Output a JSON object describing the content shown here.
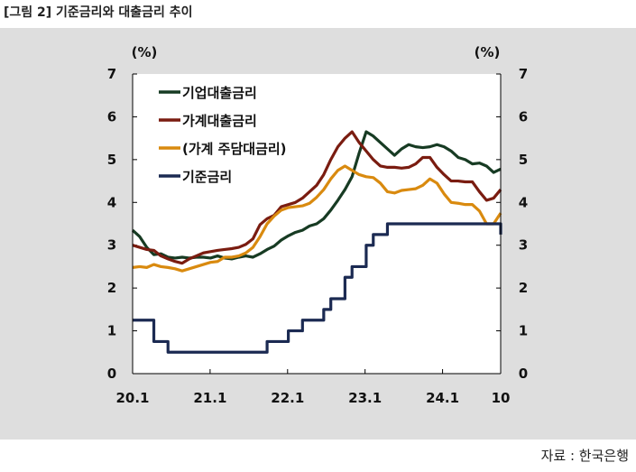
{
  "figure_title": "[그림 2] 기준금리와 대출금리 추이",
  "source": "자료 : 한국은행",
  "chart_data": {
    "type": "line",
    "y_unit_left": "(%)",
    "y_unit_right": "(%)",
    "ylim": [
      0,
      7
    ],
    "yticks": [
      "0",
      "1",
      "2",
      "3",
      "4",
      "5",
      "6",
      "7"
    ],
    "xticks": [
      "20.1",
      "21.1",
      "22.1",
      "23.1",
      "24.1",
      "10"
    ],
    "x_note": "monthly, 2020.1 to 2024.10",
    "legend_position": "top-left",
    "series": [
      {
        "name": "기업대출금리",
        "color": "#173b23",
        "values": [
          3.35,
          3.2,
          2.95,
          2.78,
          2.8,
          2.72,
          2.7,
          2.72,
          2.7,
          2.72,
          2.72,
          2.7,
          2.75,
          2.7,
          2.68,
          2.72,
          2.75,
          2.72,
          2.8,
          2.9,
          2.98,
          3.12,
          3.22,
          3.3,
          3.35,
          3.45,
          3.5,
          3.62,
          3.82,
          4.05,
          4.3,
          4.6,
          5.15,
          5.65,
          5.55,
          5.4,
          5.25,
          5.1,
          5.25,
          5.35,
          5.3,
          5.28,
          5.3,
          5.35,
          5.3,
          5.2,
          5.05,
          5.0,
          4.9,
          4.92,
          4.85,
          4.7,
          4.78
        ]
      },
      {
        "name": "가계대출금리",
        "color": "#7a1c10",
        "values": [
          3.0,
          2.95,
          2.9,
          2.88,
          2.75,
          2.68,
          2.62,
          2.58,
          2.68,
          2.75,
          2.82,
          2.85,
          2.88,
          2.9,
          2.92,
          2.95,
          3.02,
          3.15,
          3.48,
          3.62,
          3.7,
          3.9,
          3.95,
          4.0,
          4.1,
          4.25,
          4.4,
          4.65,
          5.0,
          5.3,
          5.5,
          5.65,
          5.4,
          5.2,
          5.0,
          4.85,
          4.82,
          4.82,
          4.8,
          4.82,
          4.9,
          5.05,
          5.05,
          4.82,
          4.65,
          4.5,
          4.5,
          4.48,
          4.48,
          4.25,
          4.05,
          4.1,
          4.3
        ]
      },
      {
        "name": "(가계 주담대금리)",
        "color": "#d98a0f",
        "values": [
          2.48,
          2.5,
          2.48,
          2.55,
          2.5,
          2.48,
          2.45,
          2.4,
          2.45,
          2.5,
          2.55,
          2.6,
          2.62,
          2.72,
          2.72,
          2.75,
          2.82,
          2.95,
          3.2,
          3.5,
          3.68,
          3.82,
          3.88,
          3.9,
          3.92,
          3.98,
          4.12,
          4.3,
          4.55,
          4.75,
          4.85,
          4.75,
          4.65,
          4.6,
          4.58,
          4.45,
          4.25,
          4.22,
          4.28,
          4.3,
          4.32,
          4.4,
          4.55,
          4.45,
          4.2,
          4.0,
          3.98,
          3.95,
          3.95,
          3.8,
          3.5,
          3.5,
          3.75
        ]
      },
      {
        "name": "기준금리",
        "color": "#1b2a52",
        "step": true,
        "values": [
          1.25,
          1.25,
          1.25,
          0.75,
          0.75,
          0.5,
          0.5,
          0.5,
          0.5,
          0.5,
          0.5,
          0.5,
          0.5,
          0.5,
          0.5,
          0.5,
          0.5,
          0.5,
          0.5,
          0.75,
          0.75,
          0.75,
          1.0,
          1.0,
          1.25,
          1.25,
          1.25,
          1.5,
          1.75,
          1.75,
          2.25,
          2.5,
          2.5,
          3.0,
          3.25,
          3.25,
          3.5,
          3.5,
          3.5,
          3.5,
          3.5,
          3.5,
          3.5,
          3.5,
          3.5,
          3.5,
          3.5,
          3.5,
          3.5,
          3.5,
          3.5,
          3.5,
          3.25
        ]
      }
    ]
  }
}
